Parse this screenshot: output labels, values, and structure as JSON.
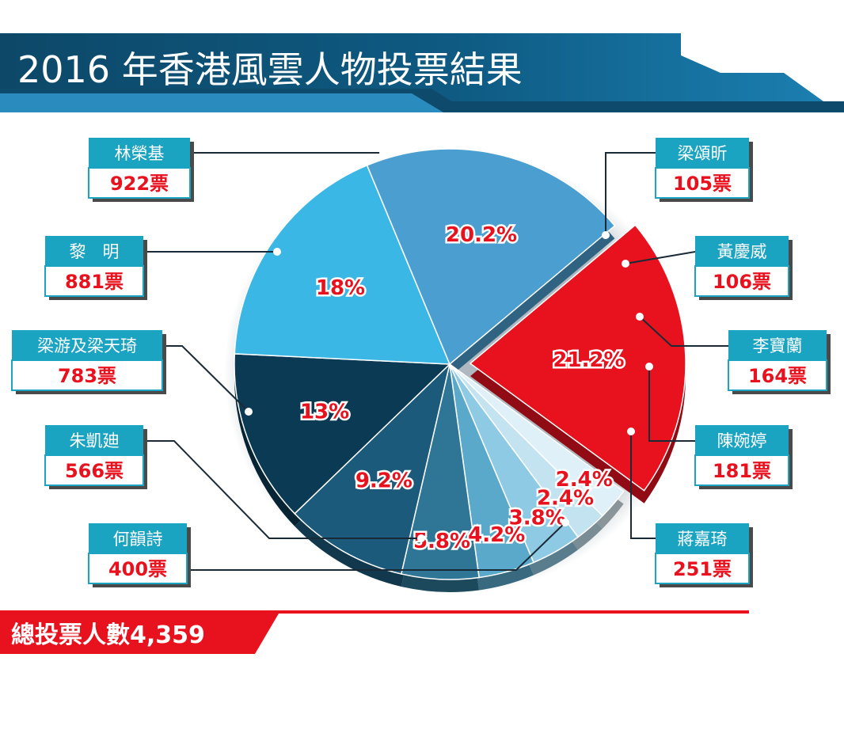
{
  "chart_data": {
    "type": "pie",
    "title": "2016 年香港風雲人物投票結果",
    "unit_suffix": "票",
    "slices": [
      {
        "name": "林榮基",
        "votes": "922",
        "percent_label": "21.2%",
        "value": 21.2,
        "color": "#e8121e"
      },
      {
        "name": "梁頌昕",
        "votes": "105",
        "percent_label": "2.4%",
        "value": 2.4,
        "color": "#dff0f9"
      },
      {
        "name": "黃慶威",
        "votes": "106",
        "percent_label": "2.4%",
        "value": 2.4,
        "color": "#c4e3f1"
      },
      {
        "name": "李寶蘭",
        "votes": "164",
        "percent_label": "3.8%",
        "value": 3.8,
        "color": "#8fcae4"
      },
      {
        "name": "陳婉婷",
        "votes": "181",
        "percent_label": "4.2%",
        "value": 4.2,
        "color": "#5aa9cb"
      },
      {
        "name": "蔣嘉琦",
        "votes": "251",
        "percent_label": "5.8%",
        "value": 5.8,
        "color": "#2f7596"
      },
      {
        "name": "何韻詩",
        "votes": "400",
        "percent_label": "9.2%",
        "value": 9.2,
        "color": "#1c5a7c"
      },
      {
        "name": "朱凱廸",
        "votes": "566",
        "percent_label": "13%",
        "value": 13,
        "color": "#0b3a55"
      },
      {
        "name": "梁游及梁天琦",
        "votes": "783",
        "percent_label": "18%",
        "value": 18,
        "color": "#3bb7e6"
      },
      {
        "name": "黎　明",
        "votes": "881",
        "percent_label": "20.2%",
        "value": 20.2,
        "color": "#4b9fd0"
      }
    ]
  },
  "total": {
    "label": "總投票人數4,359"
  },
  "colors": {
    "accent_red": "#e8121e",
    "banner_dark": "#0d4868",
    "banner_light": "#1f7fad",
    "label_box": "#1ba3c2"
  }
}
